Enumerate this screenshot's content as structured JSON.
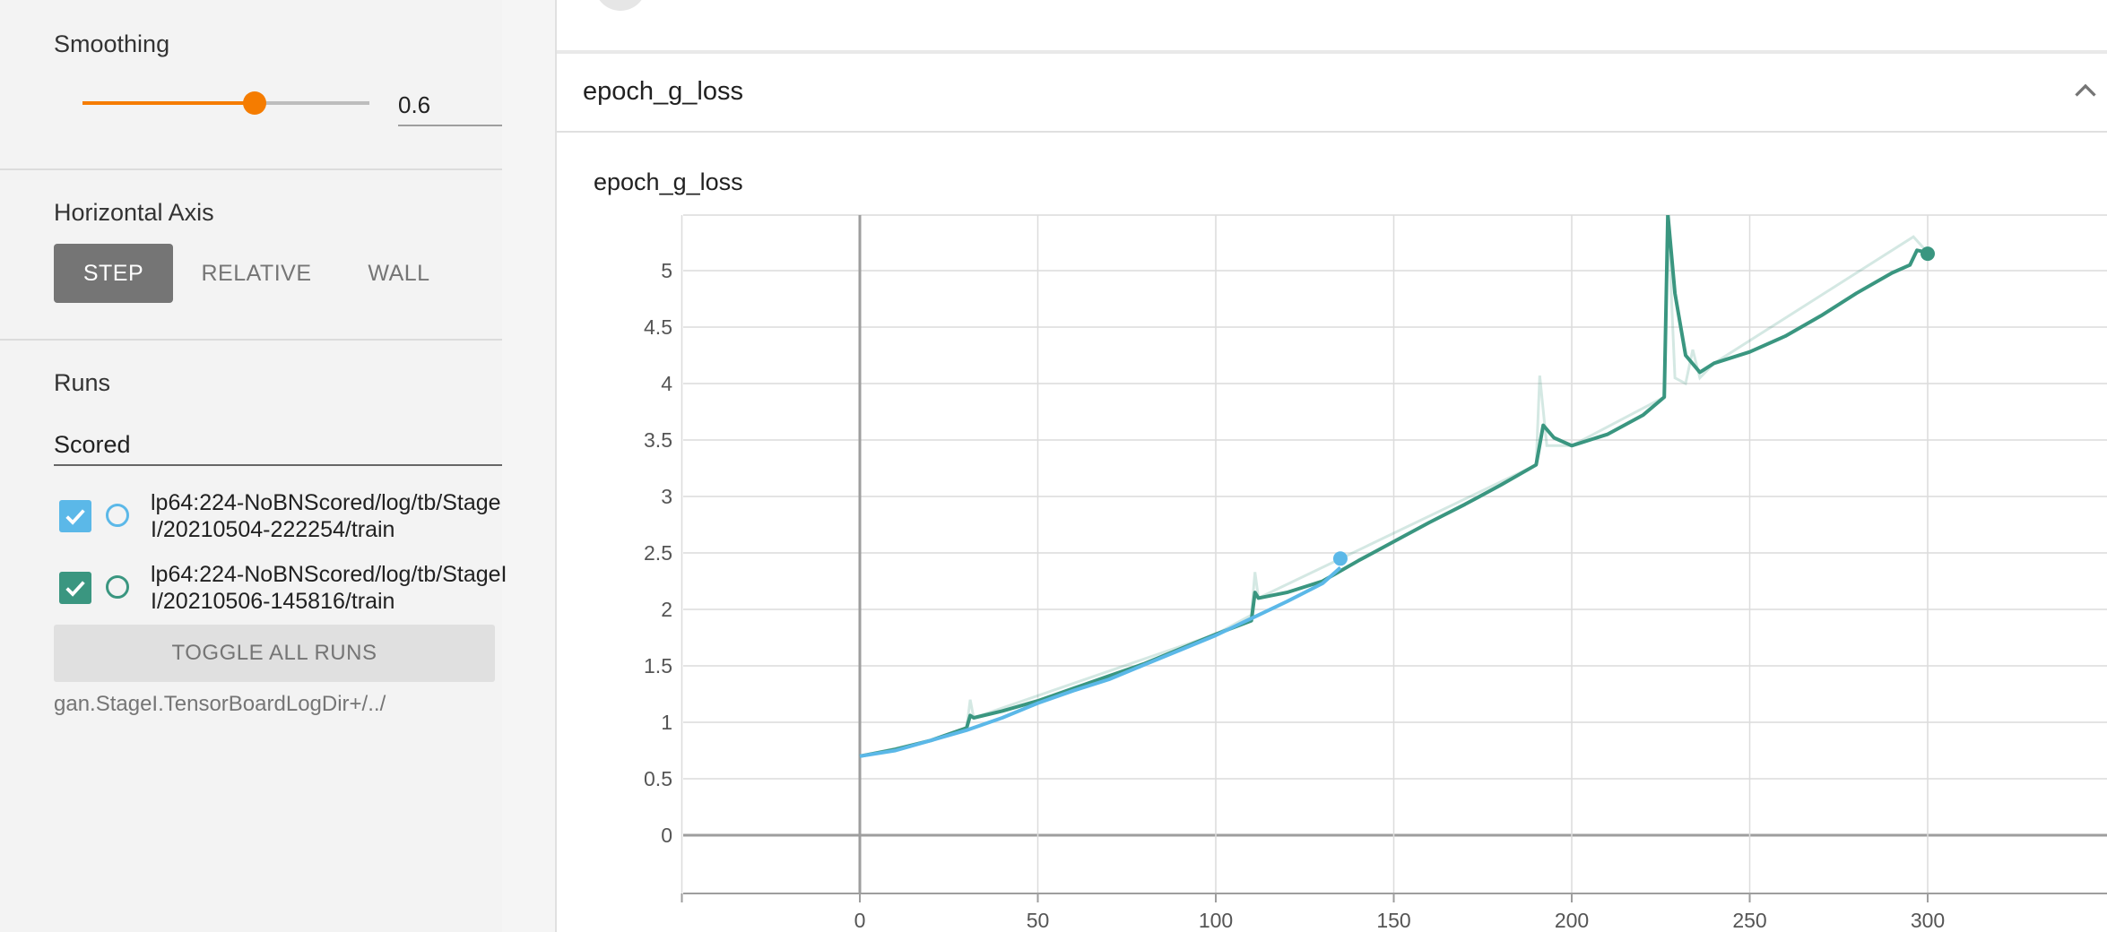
{
  "sidebar": {
    "smoothing": {
      "label": "Smoothing",
      "value": "0.6",
      "fraction": 0.6
    },
    "horizontal_axis": {
      "label": "Horizontal Axis",
      "options": [
        "STEP",
        "RELATIVE",
        "WALL"
      ],
      "selected": "STEP"
    },
    "runs": {
      "label": "Runs",
      "filter_value": "Scored",
      "items": [
        {
          "label": "lp64:224-NoBNScored/log/tb/StageI/20210504-222254/train",
          "checked": true,
          "color": "#5bb8e8"
        },
        {
          "label": "lp64:224-NoBNScored/log/tb/StageII/20210506-145816/train",
          "checked": true,
          "color": "#3a9680"
        }
      ],
      "toggle_all_label": "TOGGLE ALL RUNS",
      "logdir": "gan.StageI.TensorBoardLogDir+/../"
    }
  },
  "card": {
    "title": "epoch_g_loss",
    "chart_title": "epoch_g_loss"
  },
  "chart_data": {
    "type": "line",
    "title": "epoch_g_loss",
    "xlabel": "",
    "ylabel": "",
    "xlim": [
      -50,
      350
    ],
    "ylim": [
      -0.5,
      5.5
    ],
    "x_ticks": [
      0,
      50,
      100,
      150,
      200,
      250,
      300
    ],
    "y_ticks": [
      0,
      0.5,
      1,
      1.5,
      2,
      2.5,
      3,
      3.5,
      4,
      4.5,
      5
    ],
    "grid": true,
    "series": [
      {
        "color": "#5bb8e8",
        "smoothed": [
          [
            0,
            0.7
          ],
          [
            10,
            0.75
          ],
          [
            20,
            0.84
          ],
          [
            30,
            0.93
          ],
          [
            40,
            1.04
          ],
          [
            50,
            1.17
          ],
          [
            60,
            1.28
          ],
          [
            70,
            1.38
          ],
          [
            80,
            1.51
          ],
          [
            90,
            1.64
          ],
          [
            100,
            1.77
          ],
          [
            110,
            1.92
          ],
          [
            120,
            2.07
          ],
          [
            130,
            2.23
          ],
          [
            135,
            2.37
          ]
        ],
        "last_point": [
          135,
          2.45
        ]
      },
      {
        "color": "#3a9680",
        "smoothed": [
          [
            0,
            0.7
          ],
          [
            10,
            0.76
          ],
          [
            20,
            0.84
          ],
          [
            30,
            0.95
          ],
          [
            31,
            1.06
          ],
          [
            32,
            1.04
          ],
          [
            40,
            1.1
          ],
          [
            50,
            1.19
          ],
          [
            60,
            1.3
          ],
          [
            70,
            1.41
          ],
          [
            80,
            1.52
          ],
          [
            90,
            1.65
          ],
          [
            100,
            1.78
          ],
          [
            110,
            1.9
          ],
          [
            111,
            2.15
          ],
          [
            112,
            2.1
          ],
          [
            120,
            2.15
          ],
          [
            130,
            2.25
          ],
          [
            140,
            2.43
          ],
          [
            150,
            2.6
          ],
          [
            160,
            2.77
          ],
          [
            170,
            2.93
          ],
          [
            180,
            3.1
          ],
          [
            190,
            3.28
          ],
          [
            192,
            3.63
          ],
          [
            195,
            3.52
          ],
          [
            200,
            3.45
          ],
          [
            210,
            3.55
          ],
          [
            220,
            3.72
          ],
          [
            226,
            3.88
          ],
          [
            227,
            5.5
          ],
          [
            229,
            4.8
          ],
          [
            232,
            4.25
          ],
          [
            236,
            4.1
          ],
          [
            240,
            4.18
          ],
          [
            250,
            4.28
          ],
          [
            260,
            4.42
          ],
          [
            270,
            4.6
          ],
          [
            280,
            4.8
          ],
          [
            290,
            4.98
          ],
          [
            295,
            5.05
          ],
          [
            297,
            5.18
          ],
          [
            300,
            5.16
          ]
        ],
        "raw": [
          [
            0,
            0.7
          ],
          [
            20,
            0.84
          ],
          [
            30,
            0.95
          ],
          [
            31,
            1.2
          ],
          [
            32,
            1.04
          ],
          [
            100,
            1.78
          ],
          [
            110,
            1.95
          ],
          [
            111,
            2.33
          ],
          [
            112,
            2.1
          ],
          [
            190,
            3.28
          ],
          [
            191,
            4.07
          ],
          [
            193,
            3.45
          ],
          [
            200,
            3.45
          ],
          [
            226,
            3.88
          ],
          [
            227,
            5.5
          ],
          [
            229,
            4.05
          ],
          [
            232,
            4.0
          ],
          [
            234,
            4.3
          ],
          [
            236,
            4.05
          ],
          [
            240,
            4.18
          ],
          [
            296,
            5.3
          ],
          [
            300,
            5.16
          ]
        ],
        "last_point": [
          300,
          5.15
        ]
      }
    ]
  }
}
